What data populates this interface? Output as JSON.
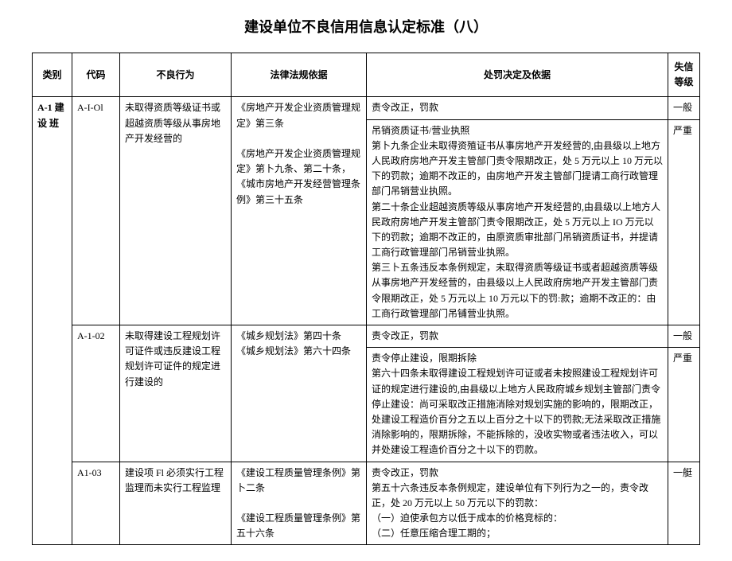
{
  "title": "建设单位不良信用信息认定标准（八）",
  "table": {
    "headers": {
      "category": "类别",
      "code": "代码",
      "behavior": "不良行为",
      "legal": "法律法规依据",
      "decision": "处罚决定及依据",
      "level": "失信等级"
    },
    "category_label": "A-1 建设 班",
    "rows": [
      {
        "code": "A-I-Ol",
        "behavior": "未取得资质等级证书或超越资质等级从事房地产开发经营的",
        "legal_1": "《房地产开发企业资质管理规定》第三条",
        "legal_2": "《房地产开发企业资质管理规定》第卜九条、第二十条，《城市房地产开发经营管理条例》第三十五条",
        "decision_1": "责令改正，罚款",
        "decision_2": "吊销资质证书/营业执照",
        "decision_3": "第卜九条企业未取得资殖证书从事房地产开发经营的,由县级以上地方人民政府房地产开发主管部门责令限期改正，处 5 万元以上 10 万元以下的罚款；逾期不改正的，由房地产开发主管部门提请工商行政管理部门吊销营业执照。",
        "decision_4": "第二十条企业超越资质等级从事房地产开发经营的,由县级以上地方人民政府房地产开发主管部门责令限期改正，处 5 万元以上 IO 万元以下的罚款；逾期不改正的，由原资质审批部门吊销资质证书，并提请工商行政管理部门吊销营业执照。",
        "decision_5": "第三卜五条违反本条例规定，未取得资质等级证书或者超越资质等级从事房地产开发经营的，由县级以上人民政府房地产开发主管部门责令限期改正，处 5 万元以上 10 万元以下的罚:款；逾期不改正的：由工商行政管理部门吊铺营业执照。",
        "level_1": "一般",
        "level_2": "严重"
      },
      {
        "code": "A-1-02",
        "behavior": "未取得建设工程规划许可证件或违反建设工程规划许可证件的规定进行建设的",
        "legal_1": "《城乡规划法》第四十条",
        "legal_2": "《城乡规划法》第六十四条",
        "decision_1": "责令改正，罚款",
        "decision_2": "责令停止建设，限期拆除",
        "decision_3": "第六十四条未取得建设工程规划许可证或者未按照建设工程规划许可证的规定进行建设的,由县级以上地方人民政府城乡规划主管部门责令停止建设：尚可采取改正措施消除对规划实施的影响的，限期改正，处建设工程造价百分之五以上百分之十以下的罚款;无法采取改正措施消除影响的，限期拆除，不能拆除的，没收实物或者违法收入，可以并处建设工程造价百分之十以下的罚款。",
        "level_1": "一般",
        "level_2": "严重"
      },
      {
        "code": "A1-03",
        "behavior": "建设项 Fl 必须实行工程监理而未实行工程监理",
        "legal_1": "《建设工程质量管理条例》第卜二条",
        "legal_2": "《建设工程质量管理条例》第五十六条",
        "decision_1": "责令改正，罚款",
        "decision_2": "第五十六条违反本条例规定，建设单位有下列行为之一的，责令改正，处 20 万元以上 50 万元以下的罚款：",
        "decision_3": "（一）迫使承包方以低于成本的价格竞标的：",
        "decision_4": "（二）任意压缩合理工期的；",
        "level_1": "一艇"
      }
    ]
  }
}
